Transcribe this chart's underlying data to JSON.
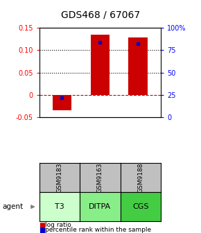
{
  "title": "GDS468 / 67067",
  "samples": [
    "GSM9183",
    "GSM9163",
    "GSM9188"
  ],
  "agents": [
    "T3",
    "DITPA",
    "CGS"
  ],
  "log_ratios": [
    -0.035,
    0.135,
    0.128
  ],
  "percentile_ranks_pct": [
    22,
    84,
    82
  ],
  "ylim_left": [
    -0.05,
    0.15
  ],
  "yticks_left": [
    -0.05,
    0.0,
    0.05,
    0.1,
    0.15
  ],
  "ytick_labels_left": [
    "-0.05",
    "0",
    "0.05",
    "0.10",
    "0.15"
  ],
  "yticks_right_pct": [
    0,
    25,
    50,
    75,
    100
  ],
  "ytick_labels_right": [
    "0",
    "25",
    "50",
    "75",
    "100%"
  ],
  "bar_color": "#cc0000",
  "dot_color": "#0000cc",
  "zero_line_color": "#cc0000",
  "sample_bg_color": "#c0c0c0",
  "agent_colors": [
    "#ccffcc",
    "#88ee88",
    "#44cc44"
  ],
  "bg_color": "#ffffff",
  "bar_width": 0.5,
  "title_fontsize": 10,
  "tick_fontsize": 7,
  "sample_fontsize": 6.5,
  "agent_fontsize": 8,
  "legend_fontsize": 6.5
}
